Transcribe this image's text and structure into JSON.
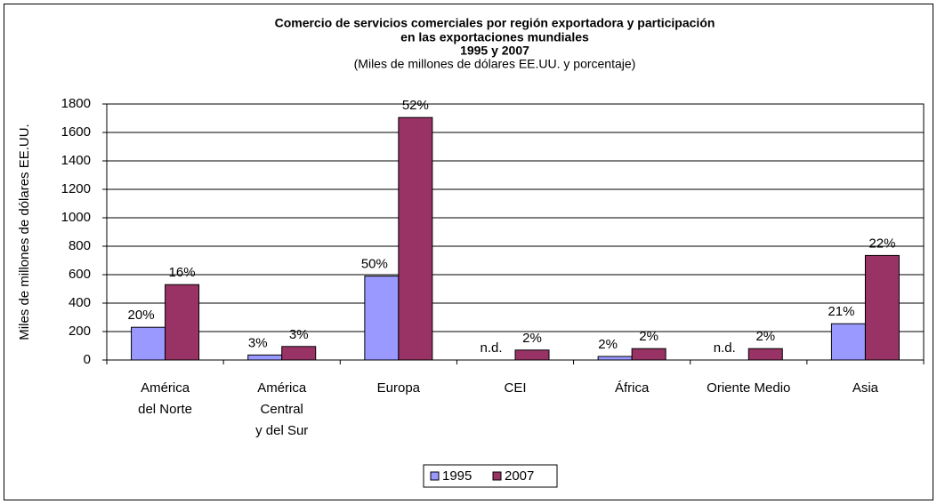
{
  "chart_data": {
    "type": "bar",
    "title": [
      "Comercio de servicios comerciales por región exportadora y participación",
      "en las exportaciones mundiales",
      "1995 y 2007"
    ],
    "subtitle": "(Miles de millones de dólares EE.UU. y porcentaje)",
    "y_label": "Miles de millones de dólares EE.UU.",
    "categories": [
      [
        "América",
        "del Norte"
      ],
      [
        "América",
        "Central",
        "y del Sur"
      ],
      [
        "Europa"
      ],
      [
        "CEI"
      ],
      [
        "África"
      ],
      [
        "Oriente Medio"
      ],
      [
        "Asia"
      ]
    ],
    "series": [
      {
        "name": "1995",
        "color": "#9999ff",
        "values": [
          230,
          35,
          590,
          null,
          25,
          null,
          255
        ],
        "share_labels": [
          "20%",
          "3%",
          "50%",
          "n.d.",
          "2%",
          "n.d.",
          "21%"
        ]
      },
      {
        "name": "2007",
        "color": "#993366",
        "values": [
          530,
          95,
          1705,
          70,
          80,
          80,
          735
        ],
        "share_labels": [
          "16%",
          "3%",
          "52%",
          "2%",
          "2%",
          "2%",
          "22%"
        ]
      }
    ],
    "ylim": [
      0,
      1800
    ],
    "yticks": [
      0,
      200,
      400,
      600,
      800,
      1000,
      1200,
      1400,
      1600,
      1800
    ],
    "grid": true,
    "legend": "bottom"
  }
}
